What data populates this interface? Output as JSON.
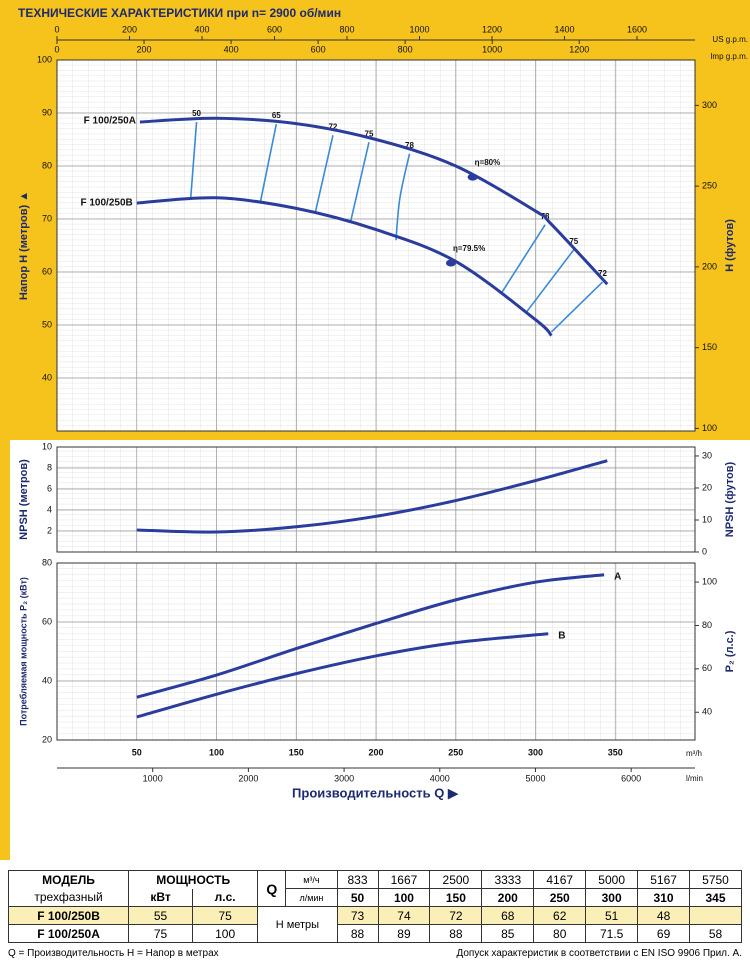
{
  "title": "ТЕХНИЧЕСКИЕ ХАРАКТЕРИСТИКИ при n= 2900 об/мин",
  "chart_data": [
    {
      "type": "line",
      "xlim": [
        0,
        400
      ],
      "ylim": [
        30,
        100
      ],
      "yticks": [
        40,
        50,
        60,
        70,
        80,
        90,
        100
      ],
      "y2lim": [
        98.4,
        328.1
      ],
      "y2ticks": [
        100,
        150,
        200,
        250,
        300
      ],
      "ylabel": "Напор Н (метров) ▲",
      "y2label": "Н (футов)",
      "grid": true,
      "top_axes": [
        {
          "label": "US g.p.m.",
          "xlim": [
            0,
            1760
          ],
          "xticks": [
            0,
            200,
            400,
            600,
            800,
            1000,
            1200,
            1400,
            1600
          ]
        },
        {
          "label": "Imp g.p.m.",
          "xlim": [
            0,
            1466
          ],
          "xticks": [
            0,
            200,
            400,
            600,
            800,
            1000,
            1200
          ]
        }
      ],
      "series": [
        {
          "name": "F 100/250A",
          "color": "#2a3c9c",
          "x": [
            52,
            100,
            150,
            200,
            250,
            300,
            310,
            345
          ],
          "values": [
            88.3,
            89,
            88,
            85,
            80,
            71.5,
            69,
            57.7
          ]
        },
        {
          "name": "F 100/250B",
          "color": "#2a3c9c",
          "x": [
            50,
            100,
            150,
            200,
            250,
            300,
            310
          ],
          "values": [
            73,
            74,
            72,
            68,
            62,
            51,
            48
          ]
        }
      ],
      "efficiency_lines": [
        {
          "label": 50,
          "x": [
            87.5,
            83.8
          ],
          "values": [
            88.3,
            73.8
          ]
        },
        {
          "label": 65,
          "x": [
            137.5,
            127.5
          ],
          "values": [
            87.9,
            73.2
          ]
        },
        {
          "label": 72,
          "x": [
            173,
            162
          ],
          "values": [
            85.8,
            71.3
          ]
        },
        {
          "label": 75,
          "x": [
            195.6,
            184
          ],
          "values": [
            84.5,
            69.4
          ]
        },
        {
          "label": 78,
          "x": [
            221,
            215,
            212.5
          ],
          "values": [
            82.3,
            74,
            66
          ]
        },
        {
          "label": 78,
          "x": [
            306,
            279
          ],
          "values": [
            68.9,
            56.2
          ]
        },
        {
          "label": 75,
          "x": [
            324,
            294
          ],
          "values": [
            64.2,
            52.3
          ]
        },
        {
          "label": 72,
          "x": [
            342,
            310
          ],
          "values": [
            58.1,
            48.7
          ]
        }
      ],
      "efficiency_points": [
        {
          "label": "η=80%",
          "x": 260.6,
          "y": 77.9
        },
        {
          "label": "η=79.5%",
          "x": 247,
          "y": 61.7
        }
      ]
    },
    {
      "type": "line",
      "xlim": [
        0,
        400
      ],
      "ylim": [
        0,
        10
      ],
      "yticks": [
        2,
        4,
        6,
        8,
        10
      ],
      "y2lim": [
        0,
        32.8
      ],
      "y2ticks": [
        0,
        10,
        20,
        30
      ],
      "ylabel": "NPSH (метров)",
      "y2label": "NPSH (футов)",
      "grid": true,
      "series": [
        {
          "color": "#2a3c9c",
          "x": [
            50,
            100,
            150,
            200,
            250,
            300,
            345
          ],
          "values": [
            2.1,
            1.9,
            2.4,
            3.4,
            4.9,
            6.8,
            8.7
          ]
        }
      ]
    },
    {
      "type": "line",
      "xlim": [
        0,
        400
      ],
      "ylim": [
        20,
        80
      ],
      "yticks": [
        20,
        40,
        60,
        80
      ],
      "y2lim": [
        27.2,
        108.8
      ],
      "y2ticks": [
        40,
        60,
        80,
        100
      ],
      "xticks": [
        50,
        100,
        150,
        200,
        250,
        300,
        350
      ],
      "xlabel": "m³/h",
      "ylabel": "Потребляемая мощность P₂ (кВт)",
      "y2label": "P₂ (л.с.)",
      "grid": true,
      "lmin_axis": {
        "label": "l/min",
        "xlim": [
          0,
          6667
        ],
        "xticks": [
          1000,
          2000,
          3000,
          4000,
          5000,
          6000
        ]
      },
      "xtitle": "Производительность Q ▶",
      "series": [
        {
          "name": "A",
          "color": "#2a3c9c",
          "x": [
            50,
            100,
            150,
            200,
            250,
            300,
            343
          ],
          "values": [
            34.5,
            42,
            51,
            59.5,
            67.5,
            73.5,
            76
          ]
        },
        {
          "name": "B",
          "color": "#2a3c9c",
          "x": [
            50,
            100,
            150,
            200,
            250,
            308
          ],
          "values": [
            27.8,
            35.5,
            42.5,
            48.5,
            53,
            56
          ]
        }
      ]
    }
  ],
  "table": {
    "model": "МОДЕЛЬ",
    "phase": "трехфазный",
    "power": "МОЩНОСТЬ",
    "kw": "кВт",
    "hp": "л.с.",
    "q": "Q",
    "m3h": "м³/ч",
    "lmin": "л/мин",
    "head": "Н метры",
    "q_lmin": [
      833,
      1667,
      2500,
      3333,
      4167,
      5000,
      5167,
      5750
    ],
    "q_m3h": [
      50,
      100,
      150,
      200,
      250,
      300,
      310,
      345
    ],
    "rows": [
      {
        "model": "F 100/250B",
        "kw": 55,
        "hp": 75,
        "head": [
          73,
          74,
          72,
          68,
          62,
          51,
          48
        ]
      },
      {
        "model": "F 100/250A",
        "kw": 75,
        "hp": 100,
        "head": [
          88,
          89,
          88,
          85,
          80,
          71.5,
          69,
          58
        ]
      }
    ]
  },
  "footer": {
    "left": "Q = Производительность  Н = Напор в метрах",
    "right": "Допуск характеристик в соответствии с EN ISO 9906 Прил. А."
  }
}
